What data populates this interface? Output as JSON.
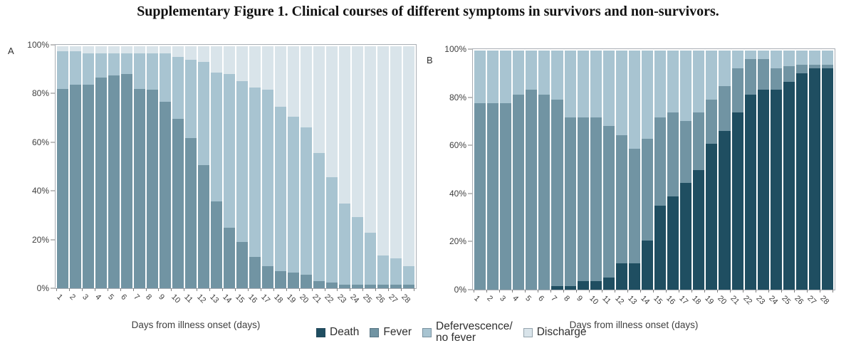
{
  "figure": {
    "title": "Supplementary Figure 1. Clinical courses of different symptoms in survivors and non-survivors."
  },
  "colors": {
    "death": "#1f4e61",
    "fever": "#7194a3",
    "defervescence": "#a8c4d1",
    "discharge": "#d9e4ea"
  },
  "y_axis": {
    "ticks": [
      "0%",
      "20%",
      "40%",
      "60%",
      "80%",
      "100%"
    ],
    "min": 0,
    "max": 100
  },
  "legend": {
    "items": [
      {
        "label": "Death",
        "color": "death"
      },
      {
        "label": "Fever",
        "color": "fever"
      },
      {
        "label": "Defervescence/\nno fever",
        "color": "defervescence"
      },
      {
        "label": "Discharge",
        "color": "discharge"
      }
    ]
  },
  "chart_data": [
    {
      "panel": "A",
      "type": "bar",
      "stacked": true,
      "xlabel": "Days from illness onset (days)",
      "ylim": [
        0,
        100
      ],
      "grid": false,
      "categories": [
        1,
        2,
        3,
        4,
        5,
        6,
        7,
        8,
        9,
        10,
        11,
        12,
        13,
        14,
        15,
        16,
        17,
        18,
        19,
        20,
        21,
        22,
        23,
        24,
        25,
        26,
        27,
        28
      ],
      "series": [
        {
          "name": "Fever",
          "color": "fever",
          "values": [
            82.5,
            84,
            84,
            87,
            88,
            88.5,
            82.5,
            82,
            77,
            70,
            62,
            51,
            36,
            25,
            19,
            13,
            9,
            7,
            6.5,
            5.5,
            3,
            2.5,
            1.5,
            1.5,
            1.5,
            1.5,
            1.5,
            1.5
          ]
        },
        {
          "name": "Defervescence/no fever",
          "color": "defervescence",
          "values": [
            15.5,
            14,
            13,
            10,
            9,
            8.5,
            14.5,
            15,
            20,
            25.5,
            32.5,
            42.5,
            53,
            63.5,
            66.5,
            70,
            73,
            68,
            64.5,
            61,
            53,
            43.5,
            33.5,
            28,
            21.5,
            12,
            11,
            7.5
          ]
        },
        {
          "name": "Discharge",
          "color": "discharge",
          "values": [
            2,
            2,
            3,
            3,
            3,
            3,
            3,
            3,
            3,
            4.5,
            5.5,
            6.5,
            11,
            11.5,
            14.5,
            17,
            18,
            25,
            29,
            33.5,
            44,
            54,
            65,
            70.5,
            77,
            86.5,
            87.5,
            91
          ]
        }
      ]
    },
    {
      "panel": "B",
      "type": "bar",
      "stacked": true,
      "xlabel": "Days from illness onset (days)",
      "ylim": [
        0,
        100
      ],
      "grid": false,
      "categories": [
        1,
        2,
        3,
        4,
        5,
        6,
        7,
        8,
        9,
        10,
        11,
        12,
        13,
        14,
        15,
        16,
        17,
        18,
        19,
        20,
        21,
        22,
        23,
        24,
        25,
        26,
        27,
        28
      ],
      "series": [
        {
          "name": "Death",
          "color": "death",
          "values": [
            0,
            0,
            0,
            0,
            0,
            0,
            1.5,
            1.5,
            3.5,
            3.5,
            5,
            11,
            11,
            20.5,
            35,
            39,
            44.5,
            50,
            61,
            66.5,
            74,
            81.5,
            83.5,
            83.5,
            87,
            90.5,
            92.5,
            92.5
          ]
        },
        {
          "name": "Fever",
          "color": "fever",
          "values": [
            78,
            78,
            78,
            81.5,
            83.5,
            81.5,
            78,
            70.5,
            68.5,
            68.5,
            63.5,
            53.5,
            48,
            42.5,
            37,
            35,
            26,
            24,
            18.5,
            18.5,
            18.5,
            15,
            13,
            9,
            6.5,
            3.5,
            1.5,
            1.5
          ]
        },
        {
          "name": "Defervescence/no fever",
          "color": "defervescence",
          "values": [
            22,
            22,
            22,
            18.5,
            16.5,
            18.5,
            20.5,
            28,
            28,
            28,
            31.5,
            35.5,
            41,
            37,
            28,
            26,
            29.5,
            26,
            20.5,
            15,
            7.5,
            3.5,
            3.5,
            7.5,
            6.5,
            6,
            6,
            6
          ]
        }
      ]
    }
  ]
}
